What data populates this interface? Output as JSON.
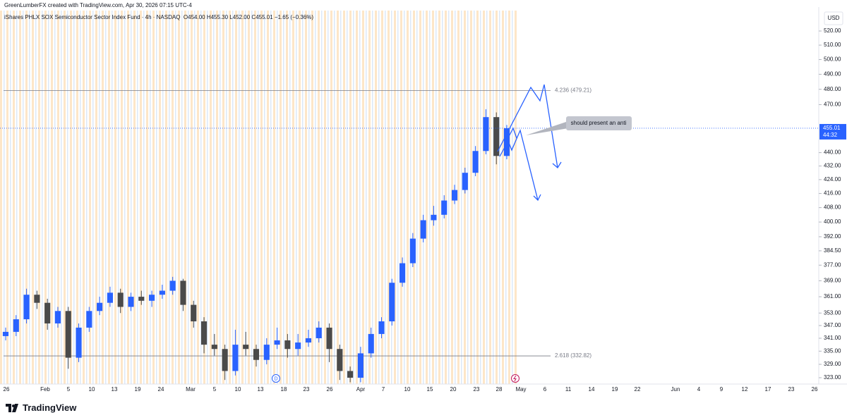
{
  "header": {
    "credit": "GreenLumberFX created with TradingView.com, Apr 30, 2026 07:15 UTC-4",
    "brand": "TradingView"
  },
  "chart_data": {
    "type": "candlestick",
    "title": "iShares PHLX SOX Semiconductor Sector Index Fund · 4h · NASDAQ",
    "ohlc_summary": "O454.00 H455.30 L452.00 C455.01 −1.65 (−0.36%)",
    "currency": "USD",
    "log_scale": true,
    "up_color": "#2962ff",
    "down_color": "#4a4a4a",
    "ylim": [
      320.2,
      534.8
    ],
    "yticks": [
      {
        "value": 323,
        "label": "323.00"
      },
      {
        "value": 329,
        "label": "329.00"
      },
      {
        "value": 335,
        "label": "335.00"
      },
      {
        "value": 341,
        "label": "341.00"
      },
      {
        "value": 347,
        "label": "347.00"
      },
      {
        "value": 353,
        "label": "353.00"
      },
      {
        "value": 361,
        "label": "361.00"
      },
      {
        "value": 369,
        "label": "369.00"
      },
      {
        "value": 377,
        "label": "377.00"
      },
      {
        "value": 384.5,
        "label": "384.50"
      },
      {
        "value": 392,
        "label": "392.00"
      },
      {
        "value": 400,
        "label": "400.00"
      },
      {
        "value": 408,
        "label": "408.00"
      },
      {
        "value": 416,
        "label": "416.00"
      },
      {
        "value": 424,
        "label": "424.00"
      },
      {
        "value": 432,
        "label": "432.00"
      },
      {
        "value": 440,
        "label": "440.00"
      },
      {
        "value": 470,
        "label": "470.00"
      },
      {
        "value": 480,
        "label": "480.00"
      },
      {
        "value": 490,
        "label": "490.00"
      },
      {
        "value": 500,
        "label": "500.00"
      },
      {
        "value": 510,
        "label": "510.00"
      },
      {
        "value": 520,
        "label": "520.00"
      }
    ],
    "x_labels": [
      "26",
      "Feb",
      "5",
      "10",
      "13",
      "19",
      "24",
      "Mar",
      "5",
      "10",
      "13",
      "18",
      "23",
      "26",
      "Apr",
      "7",
      "10",
      "15",
      "20",
      "23",
      "28",
      "May",
      "6",
      "11",
      "14",
      "19",
      "22",
      "Jun",
      "4",
      "9",
      "12",
      "17",
      "23",
      "26"
    ],
    "ohlc": [
      [
        342,
        346,
        340,
        344
      ],
      [
        344,
        352,
        342,
        350
      ],
      [
        350,
        365,
        348,
        362
      ],
      [
        362,
        364,
        355,
        358
      ],
      [
        358,
        360,
        345,
        348
      ],
      [
        348,
        356,
        346,
        354
      ],
      [
        354,
        356,
        327,
        332
      ],
      [
        332,
        348,
        330,
        346
      ],
      [
        346,
        356,
        344,
        354
      ],
      [
        354,
        361,
        352,
        358
      ],
      [
        358,
        366,
        356,
        363
      ],
      [
        363,
        365,
        353,
        356
      ],
      [
        356,
        363,
        354,
        361
      ],
      [
        361,
        364,
        357,
        359
      ],
      [
        359,
        364,
        356,
        362
      ],
      [
        362,
        367,
        360,
        364
      ],
      [
        364,
        371,
        362,
        369
      ],
      [
        369,
        370,
        354,
        357
      ],
      [
        357,
        359,
        346,
        349
      ],
      [
        349,
        351,
        334,
        338
      ],
      [
        338,
        343,
        333,
        336
      ],
      [
        336,
        338,
        322,
        326
      ],
      [
        326,
        345,
        324,
        338
      ],
      [
        338,
        344,
        333,
        336
      ],
      [
        336,
        338,
        328,
        331
      ],
      [
        331,
        341,
        329,
        338
      ],
      [
        338,
        346,
        336,
        340
      ],
      [
        340,
        343,
        332,
        336
      ],
      [
        336,
        343,
        333,
        339
      ],
      [
        339,
        345,
        337,
        341
      ],
      [
        341,
        349,
        339,
        346
      ],
      [
        346,
        348,
        330,
        336
      ],
      [
        336,
        338,
        322,
        326
      ],
      [
        326,
        328,
        321,
        323
      ],
      [
        323,
        337,
        321,
        334
      ],
      [
        334,
        346,
        332,
        343
      ],
      [
        343,
        351,
        341,
        349
      ],
      [
        349,
        370,
        347,
        368
      ],
      [
        368,
        381,
        366,
        378
      ],
      [
        378,
        394,
        376,
        391
      ],
      [
        391,
        404,
        389,
        401
      ],
      [
        401,
        409,
        398,
        404
      ],
      [
        404,
        415,
        402,
        412
      ],
      [
        412,
        421,
        410,
        418
      ],
      [
        418,
        431,
        416,
        428
      ],
      [
        428,
        444,
        426,
        441
      ],
      [
        441,
        467,
        439,
        462
      ],
      [
        462,
        465,
        433,
        438
      ],
      [
        438,
        457,
        436,
        455.01
      ]
    ],
    "last_price": {
      "value": 455.01,
      "label": "455.01",
      "countdown": "44:32"
    },
    "levels": [
      {
        "label": "4.236 (479.21)",
        "value": 479.21
      },
      {
        "label": "2.618 (332.82)",
        "value": 332.82
      }
    ],
    "annotation": "should present an anti",
    "dividend_marker": "D"
  }
}
